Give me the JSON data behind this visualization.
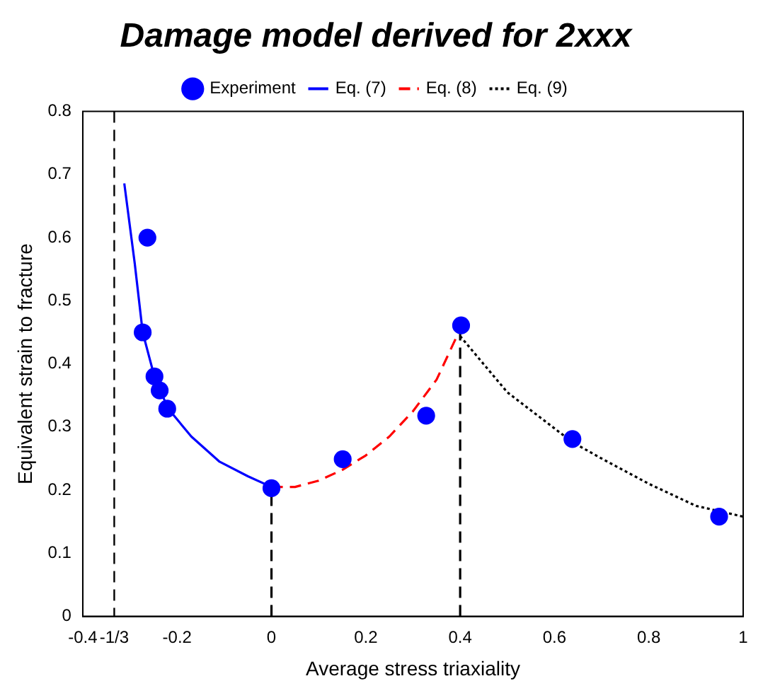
{
  "chart_data": {
    "type": "scatter",
    "title": "Damage model derived for 2xxx",
    "xlabel": "Average stress triaxiality",
    "ylabel": "Equivalent strain to fracture",
    "xlim": [
      -0.4,
      1
    ],
    "xticks": [
      -0.4,
      {
        "value": -0.3333,
        "label": "-1/3"
      },
      -0.2,
      0,
      0.2,
      0.4,
      0.6,
      0.8,
      1
    ],
    "ylim": [
      0,
      0.8
    ],
    "yticks": [
      0,
      0.1,
      0.2,
      0.3,
      0.4,
      0.5,
      0.6,
      0.7,
      0.8
    ],
    "grid": false,
    "legend": "top",
    "ref_lines": [
      {
        "axis": "x",
        "value": -0.3333,
        "color": "#000000",
        "line_style": "dashed"
      }
    ],
    "series": [
      {
        "name": "Experiment",
        "type": "scatter",
        "color": "#0000ff",
        "marker": "circle",
        "x": [
          -0.263,
          -0.273,
          -0.248,
          -0.237,
          -0.221,
          0,
          0.151,
          0.328,
          0.402,
          0.638,
          0.949
        ],
        "values": [
          0.6,
          0.45,
          0.38,
          0.358,
          0.329,
          0.203,
          0.249,
          0.318,
          0.461,
          0.281,
          0.158
        ]
      },
      {
        "name": "Eq. (7)",
        "type": "line",
        "color": "#0000ff",
        "marker": "none",
        "line_style": "solid",
        "x": [
          -0.312,
          -0.29,
          -0.273,
          -0.25,
          -0.22,
          -0.17,
          -0.11,
          -0.05,
          0
        ],
        "values": [
          0.686,
          0.56,
          0.45,
          0.385,
          0.33,
          0.285,
          0.245,
          0.222,
          0.205
        ]
      },
      {
        "name": "Eq. (8)",
        "type": "line",
        "color": "#ff0000",
        "marker": "none",
        "line_style": "dashed",
        "x": [
          0,
          0.05,
          0.1,
          0.15,
          0.2,
          0.25,
          0.3,
          0.35,
          0.4
        ],
        "values": [
          0.205,
          0.205,
          0.215,
          0.232,
          0.255,
          0.285,
          0.325,
          0.375,
          0.455
        ]
      },
      {
        "name": "Eq. (9)",
        "type": "line",
        "color": "#000000",
        "marker": "none",
        "line_style": "dotted",
        "x": [
          0.4,
          0.5,
          0.638,
          0.7,
          0.8,
          0.9,
          1
        ],
        "values": [
          0.444,
          0.355,
          0.276,
          0.25,
          0.21,
          0.175,
          0.158
        ]
      },
      {
        "type": "line",
        "color": "#000000",
        "marker": "none",
        "line_style": "dashed",
        "x": [
          0,
          0
        ],
        "values": [
          0,
          0.205
        ]
      },
      {
        "type": "line",
        "color": "#000000",
        "marker": "none",
        "line_style": "dashed",
        "x": [
          0.4,
          0.4
        ],
        "values": [
          0,
          0.46
        ]
      }
    ]
  }
}
